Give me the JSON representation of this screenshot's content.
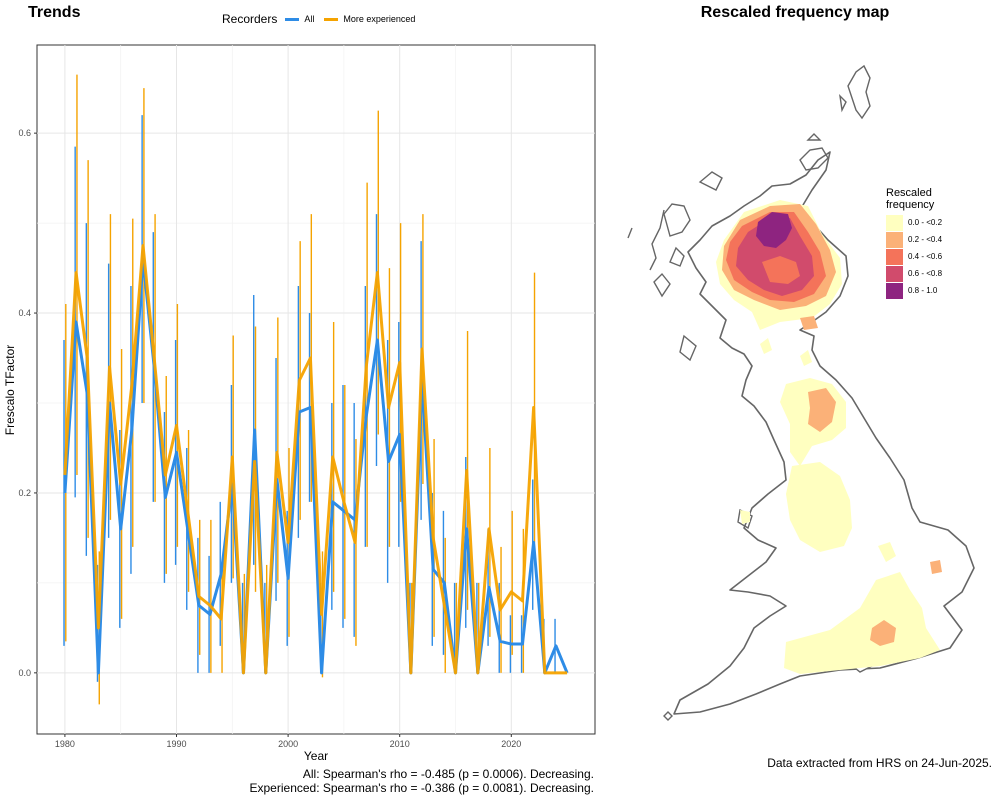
{
  "trends_panel": {
    "title": "Trends",
    "legend_title": "Recorders",
    "stats_all": "All: Spearman's rho = -0.485 (p = 0.0006). Decreasing.",
    "stats_experienced": "Experienced: Spearman's rho = -0.386 (p = 0.0081). Decreasing."
  },
  "chart_data": {
    "type": "line",
    "xlabel": "Year",
    "ylabel": "Frescalo TFactor",
    "xlim": [
      1977.5,
      2027.5
    ],
    "ylim": [
      -0.068,
      0.698
    ],
    "x_ticks": [
      1980,
      1990,
      2000,
      2010,
      2020
    ],
    "y_ticks": [
      0.0,
      0.2,
      0.4,
      0.6
    ],
    "y_tick_labels": [
      "0.0",
      "0.2",
      "0.4",
      "0.6"
    ],
    "grid": true,
    "legend_position": "top",
    "series": [
      {
        "name": "All",
        "color": "#2e8ce6",
        "points": [
          {
            "x": 1980,
            "y": 0.2,
            "lo": 0.03,
            "hi": 0.37
          },
          {
            "x": 1981,
            "y": 0.39,
            "lo": 0.195,
            "hi": 0.585
          },
          {
            "x": 1982,
            "y": 0.31,
            "lo": 0.13,
            "hi": 0.5
          },
          {
            "x": 1983,
            "y": 0.0,
            "lo": -0.01,
            "hi": 0.12
          },
          {
            "x": 1984,
            "y": 0.3,
            "lo": 0.15,
            "hi": 0.455
          },
          {
            "x": 1985,
            "y": 0.16,
            "lo": 0.05,
            "hi": 0.27
          },
          {
            "x": 1986,
            "y": 0.27,
            "lo": 0.11,
            "hi": 0.43
          },
          {
            "x": 1987,
            "y": 0.46,
            "lo": 0.3,
            "hi": 0.62
          },
          {
            "x": 1988,
            "y": 0.34,
            "lo": 0.19,
            "hi": 0.49
          },
          {
            "x": 1989,
            "y": 0.195,
            "lo": 0.1,
            "hi": 0.29
          },
          {
            "x": 1990,
            "y": 0.245,
            "lo": 0.12,
            "hi": 0.37
          },
          {
            "x": 1991,
            "y": 0.16,
            "lo": 0.07,
            "hi": 0.25
          },
          {
            "x": 1992,
            "y": 0.075,
            "lo": 0.0,
            "hi": 0.15
          },
          {
            "x": 1993,
            "y": 0.065,
            "lo": 0.0,
            "hi": 0.13
          },
          {
            "x": 1994,
            "y": 0.11,
            "lo": 0.03,
            "hi": 0.19
          },
          {
            "x": 1995,
            "y": 0.21,
            "lo": 0.1,
            "hi": 0.32
          },
          {
            "x": 1996,
            "y": 0.0,
            "lo": 0.0,
            "hi": 0.1
          },
          {
            "x": 1997,
            "y": 0.27,
            "lo": 0.12,
            "hi": 0.42
          },
          {
            "x": 1998,
            "y": 0.0,
            "lo": 0.0,
            "hi": 0.1
          },
          {
            "x": 1999,
            "y": 0.215,
            "lo": 0.08,
            "hi": 0.35
          },
          {
            "x": 2000,
            "y": 0.105,
            "lo": 0.03,
            "hi": 0.18
          },
          {
            "x": 2001,
            "y": 0.29,
            "lo": 0.15,
            "hi": 0.43
          },
          {
            "x": 2002,
            "y": 0.295,
            "lo": 0.19,
            "hi": 0.4
          },
          {
            "x": 2003,
            "y": 0.0,
            "lo": 0.0,
            "hi": 0.1
          },
          {
            "x": 2004,
            "y": 0.19,
            "lo": 0.07,
            "hi": 0.3
          },
          {
            "x": 2005,
            "y": 0.18,
            "lo": 0.05,
            "hi": 0.32
          },
          {
            "x": 2006,
            "y": 0.17,
            "lo": 0.04,
            "hi": 0.3
          },
          {
            "x": 2007,
            "y": 0.285,
            "lo": 0.14,
            "hi": 0.43
          },
          {
            "x": 2008,
            "y": 0.37,
            "lo": 0.23,
            "hi": 0.51
          },
          {
            "x": 2009,
            "y": 0.235,
            "lo": 0.1,
            "hi": 0.37
          },
          {
            "x": 2010,
            "y": 0.265,
            "lo": 0.14,
            "hi": 0.39
          },
          {
            "x": 2011,
            "y": 0.0,
            "lo": 0.0,
            "hi": 0.1
          },
          {
            "x": 2012,
            "y": 0.325,
            "lo": 0.17,
            "hi": 0.48
          },
          {
            "x": 2013,
            "y": 0.115,
            "lo": 0.03,
            "hi": 0.2
          },
          {
            "x": 2014,
            "y": 0.1,
            "lo": 0.02,
            "hi": 0.18
          },
          {
            "x": 2015,
            "y": 0.0,
            "lo": 0.0,
            "hi": 0.1
          },
          {
            "x": 2016,
            "y": 0.16,
            "lo": 0.05,
            "hi": 0.24
          },
          {
            "x": 2017,
            "y": 0.0,
            "lo": 0.0,
            "hi": 0.1
          },
          {
            "x": 2018,
            "y": 0.095,
            "lo": 0.03,
            "hi": 0.16
          },
          {
            "x": 2019,
            "y": 0.035,
            "lo": 0.0,
            "hi": 0.1
          },
          {
            "x": 2020,
            "y": 0.032,
            "lo": 0.0,
            "hi": 0.064
          },
          {
            "x": 2021,
            "y": 0.032,
            "lo": 0.0,
            "hi": 0.064
          },
          {
            "x": 2022,
            "y": 0.145,
            "lo": 0.07,
            "hi": 0.215
          },
          {
            "x": 2023,
            "y": 0.0,
            "lo": 0.0,
            "hi": 0.06
          },
          {
            "x": 2024,
            "y": 0.03,
            "lo": 0.0,
            "hi": 0.06
          },
          {
            "x": 2025,
            "y": 0.0,
            "lo": 0.0,
            "hi": 0.0
          }
        ]
      },
      {
        "name": "More experienced",
        "color": "#f5a300",
        "points": [
          {
            "x": 1980,
            "y": 0.22,
            "lo": 0.035,
            "hi": 0.41
          },
          {
            "x": 1981,
            "y": 0.445,
            "lo": 0.22,
            "hi": 0.665
          },
          {
            "x": 1982,
            "y": 0.35,
            "lo": 0.15,
            "hi": 0.57
          },
          {
            "x": 1983,
            "y": 0.05,
            "lo": -0.035,
            "hi": 0.135
          },
          {
            "x": 1984,
            "y": 0.34,
            "lo": 0.17,
            "hi": 0.51
          },
          {
            "x": 1985,
            "y": 0.21,
            "lo": 0.06,
            "hi": 0.36
          },
          {
            "x": 1986,
            "y": 0.32,
            "lo": 0.14,
            "hi": 0.505
          },
          {
            "x": 1987,
            "y": 0.475,
            "lo": 0.3,
            "hi": 0.65
          },
          {
            "x": 1988,
            "y": 0.35,
            "lo": 0.19,
            "hi": 0.51
          },
          {
            "x": 1989,
            "y": 0.22,
            "lo": 0.11,
            "hi": 0.33
          },
          {
            "x": 1990,
            "y": 0.275,
            "lo": 0.14,
            "hi": 0.41
          },
          {
            "x": 1991,
            "y": 0.18,
            "lo": 0.09,
            "hi": 0.27
          },
          {
            "x": 1992,
            "y": 0.085,
            "lo": 0.02,
            "hi": 0.17
          },
          {
            "x": 1993,
            "y": 0.075,
            "lo": 0.0,
            "hi": 0.17
          },
          {
            "x": 1994,
            "y": 0.06,
            "lo": 0.0,
            "hi": 0.12
          },
          {
            "x": 1995,
            "y": 0.24,
            "lo": 0.105,
            "hi": 0.375
          },
          {
            "x": 1996,
            "y": 0.0,
            "lo": 0.0,
            "hi": 0.11
          },
          {
            "x": 1997,
            "y": 0.235,
            "lo": 0.09,
            "hi": 0.385
          },
          {
            "x": 1998,
            "y": 0.0,
            "lo": 0.0,
            "hi": 0.12
          },
          {
            "x": 1999,
            "y": 0.245,
            "lo": 0.1,
            "hi": 0.395
          },
          {
            "x": 2000,
            "y": 0.145,
            "lo": 0.04,
            "hi": 0.25
          },
          {
            "x": 2001,
            "y": 0.325,
            "lo": 0.17,
            "hi": 0.48
          },
          {
            "x": 2002,
            "y": 0.35,
            "lo": 0.19,
            "hi": 0.51
          },
          {
            "x": 2003,
            "y": 0.065,
            "lo": -0.005,
            "hi": 0.135
          },
          {
            "x": 2004,
            "y": 0.24,
            "lo": 0.09,
            "hi": 0.39
          },
          {
            "x": 2005,
            "y": 0.19,
            "lo": 0.06,
            "hi": 0.32
          },
          {
            "x": 2006,
            "y": 0.145,
            "lo": 0.03,
            "hi": 0.26
          },
          {
            "x": 2007,
            "y": 0.34,
            "lo": 0.14,
            "hi": 0.545
          },
          {
            "x": 2008,
            "y": 0.445,
            "lo": 0.265,
            "hi": 0.625
          },
          {
            "x": 2009,
            "y": 0.295,
            "lo": 0.14,
            "hi": 0.45
          },
          {
            "x": 2010,
            "y": 0.345,
            "lo": 0.19,
            "hi": 0.5
          },
          {
            "x": 2011,
            "y": 0.0,
            "lo": 0.0,
            "hi": 0.1
          },
          {
            "x": 2012,
            "y": 0.36,
            "lo": 0.21,
            "hi": 0.51
          },
          {
            "x": 2013,
            "y": 0.15,
            "lo": 0.04,
            "hi": 0.26
          },
          {
            "x": 2014,
            "y": 0.075,
            "lo": 0.0,
            "hi": 0.15
          },
          {
            "x": 2015,
            "y": 0.0,
            "lo": 0.0,
            "hi": 0.1
          },
          {
            "x": 2016,
            "y": 0.225,
            "lo": 0.07,
            "hi": 0.38
          },
          {
            "x": 2017,
            "y": 0.0,
            "lo": 0.0,
            "hi": 0.1
          },
          {
            "x": 2018,
            "y": 0.16,
            "lo": 0.04,
            "hi": 0.25
          },
          {
            "x": 2019,
            "y": 0.07,
            "lo": 0.0,
            "hi": 0.14
          },
          {
            "x": 2020,
            "y": 0.09,
            "lo": 0.02,
            "hi": 0.18
          },
          {
            "x": 2021,
            "y": 0.08,
            "lo": 0.0,
            "hi": 0.16
          },
          {
            "x": 2022,
            "y": 0.295,
            "lo": 0.145,
            "hi": 0.445
          },
          {
            "x": 2023,
            "y": 0.0,
            "lo": 0.0,
            "hi": 0.0
          },
          {
            "x": 2024,
            "y": 0.0,
            "lo": 0.0,
            "hi": 0.0
          },
          {
            "x": 2025,
            "y": 0.0,
            "lo": 0.0,
            "hi": 0.0
          }
        ]
      }
    ]
  },
  "map_panel": {
    "title": "Rescaled frequency map",
    "legend_title_line1": "Rescaled",
    "legend_title_line2": "frequency",
    "outline_color": "#666666",
    "legend_classes": [
      {
        "label": "0.0 - <0.2",
        "color": "#ffffc0"
      },
      {
        "label": "0.2 - <0.4",
        "color": "#fbb178"
      },
      {
        "label": "0.4 - <0.6",
        "color": "#f4735a"
      },
      {
        "label": "0.6 - <0.8",
        "color": "#d14b6c"
      },
      {
        "label": "0.8 - 1.0",
        "color": "#8e2480"
      }
    ]
  },
  "footer_note": "Data extracted from HRS on 24-Jun-2025."
}
